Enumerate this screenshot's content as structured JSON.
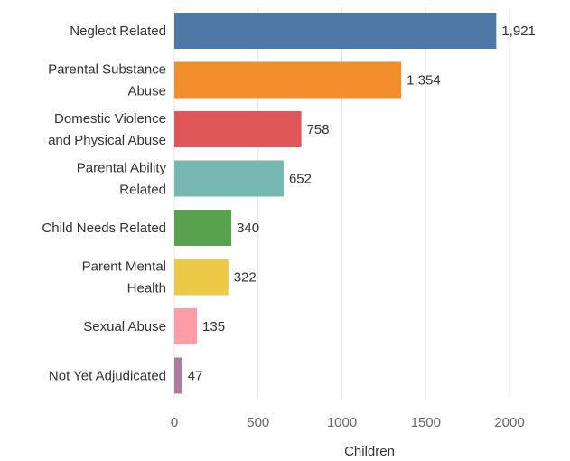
{
  "chart_data": {
    "type": "bar",
    "orientation": "horizontal",
    "title": "",
    "xlabel": "Children",
    "ylabel": "",
    "xlim": [
      0,
      2400
    ],
    "grid": true,
    "categories": [
      [
        "Neglect Related"
      ],
      [
        "Parental Substance",
        "Abuse"
      ],
      [
        "Domestic Violence",
        "and Physical Abuse"
      ],
      [
        "Parental Ability",
        "Related"
      ],
      [
        "Child Needs Related"
      ],
      [
        "Parent Mental",
        "Health"
      ],
      [
        "Sexual Abuse"
      ],
      [
        "Not Yet Adjudicated"
      ]
    ],
    "values": [
      1921,
      1354,
      758,
      652,
      340,
      322,
      135,
      47
    ],
    "value_labels": [
      "1,921",
      "1,354",
      "758",
      "652",
      "340",
      "322",
      "135",
      "47"
    ],
    "colors": [
      "#4e79a7",
      "#f28e2b",
      "#e15759",
      "#76b7b2",
      "#59a14f",
      "#edc948",
      "#ff9da7",
      "#b07aa1"
    ],
    "x_ticks": [
      0,
      500,
      1000,
      1500,
      2000
    ],
    "x_tick_labels": [
      "0",
      "500",
      "1000",
      "1500",
      "2000"
    ]
  }
}
